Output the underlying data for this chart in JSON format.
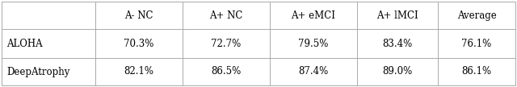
{
  "columns": [
    "",
    "A- NC",
    "A+ NC",
    "A+ eMCI",
    "A+ lMCI",
    "Average"
  ],
  "rows": [
    [
      "ALOHA",
      "70.3%",
      "72.7%",
      "79.5%",
      "83.4%",
      "76.1%"
    ],
    [
      "DeepAtrophy",
      "82.1%",
      "86.5%",
      "87.4%",
      "89.0%",
      "86.1%"
    ]
  ],
  "background_color": "#ffffff",
  "text_color": "#000000",
  "line_color": "#aaaaaa",
  "font_size": 8.5,
  "figwidth": 6.4,
  "figheight": 1.08,
  "dpi": 100
}
